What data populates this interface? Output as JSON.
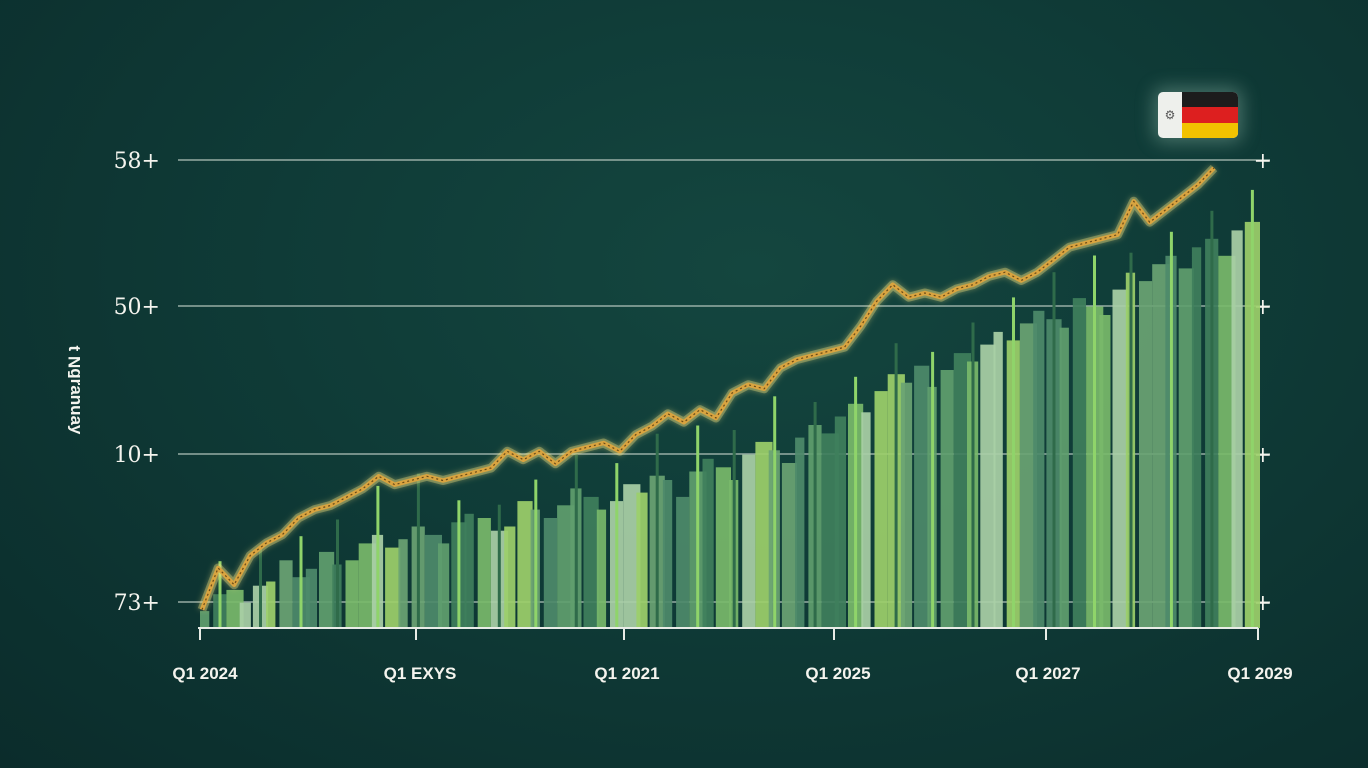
{
  "chart_data": {
    "type": "bar",
    "title": "",
    "xlabel": "",
    "ylabel": "ʎɐnuɐɹƃN ʇ",
    "y_tick_labels": [
      "73+",
      "10+",
      "50+",
      "58+"
    ],
    "x_tick_labels": [
      "Q1 2024",
      "Q1 EXYS",
      "Q1 2021",
      "Q1 2025",
      "Q1 2027",
      "Q1 2029"
    ],
    "grid": true,
    "legend": "none",
    "series": [
      {
        "type": "bar",
        "values": [
          4,
          8,
          9,
          6,
          10,
          11,
          16,
          12,
          14,
          18,
          15,
          16,
          20,
          22,
          19,
          21,
          24,
          22,
          20,
          25,
          27,
          26,
          23,
          24,
          30,
          28,
          26,
          29,
          33,
          31,
          28,
          30,
          34,
          32,
          36,
          35,
          31,
          37,
          40,
          38,
          35,
          41,
          44,
          42,
          39,
          45,
          48,
          46,
          50,
          53,
          51,
          56,
          60,
          58,
          62,
          57,
          61,
          65,
          63,
          67,
          70,
          68,
          72,
          75,
          73,
          71,
          78,
          76,
          74,
          80,
          84,
          82,
          86,
          88,
          85,
          90,
          92,
          88,
          94,
          96
        ]
      },
      {
        "type": "line",
        "values": [
          2,
          12,
          8,
          15,
          18,
          20,
          24,
          26,
          27,
          29,
          31,
          34,
          32,
          33,
          34,
          33,
          34,
          35,
          36,
          40,
          38,
          40,
          37,
          40,
          41,
          42,
          40,
          44,
          46,
          49,
          47,
          50,
          48,
          54,
          56,
          55,
          60,
          62,
          63,
          64,
          65,
          70,
          76,
          80,
          77,
          78,
          77,
          79,
          80,
          82,
          83,
          81,
          83,
          86,
          89,
          90,
          91,
          92,
          100,
          95,
          98,
          101,
          104,
          108
        ]
      }
    ]
  },
  "colors": {
    "background": "#0f3b37",
    "gridline": "#b9c9c0",
    "bar_palette": [
      "#5f9e6e",
      "#78b86a",
      "#9ccf6a",
      "#4d8a6a",
      "#3f7f5c",
      "#a9cfa6",
      "#6aa373"
    ],
    "trend_line": "#d9a440",
    "trend_glow": "#f3df7a"
  },
  "flag": {
    "name": "germany-flag-icon",
    "stripe_colors": [
      "#1c1c1c",
      "#dd1f1f",
      "#f2c200"
    ]
  }
}
